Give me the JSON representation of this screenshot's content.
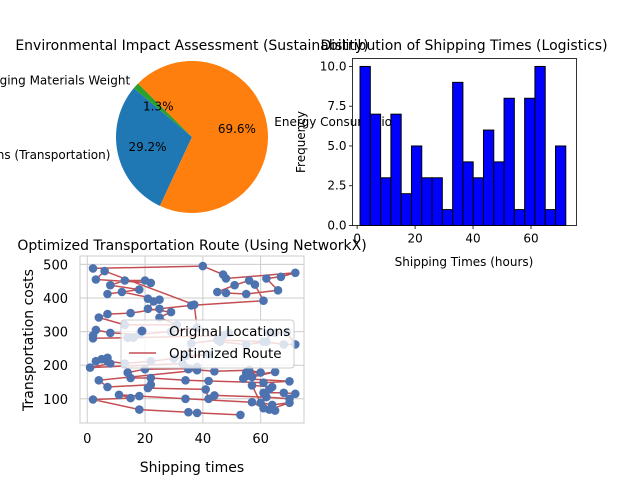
{
  "chart_data": [
    {
      "type": "pie",
      "title": "Environmental Impact Assessment (Sustainability)",
      "labels": [
        "Carbon Emissions (Transportation)",
        "Energy Consumption",
        "Packaging Materials Weight"
      ],
      "values": [
        29.2,
        69.6,
        1.3
      ],
      "value_labels": [
        "29.2%",
        "69.6%",
        "1.3%"
      ],
      "colors": [
        "#1f77b4",
        "#ff7f0e",
        "#2ca02c"
      ],
      "start_angle_deg": 140
    },
    {
      "type": "bar",
      "title": "Distribution of Shipping Times (Logistics)",
      "xlabel": "Shipping Times (hours)",
      "ylabel": "Frequency",
      "bin_start": 1,
      "bin_width": 3.55,
      "values": [
        10,
        7,
        3,
        7,
        2,
        5,
        3,
        3,
        1,
        9,
        4,
        3,
        6,
        4,
        8,
        1,
        8,
        10,
        1,
        5
      ],
      "xlim": [
        -1.6,
        75.7
      ],
      "ylim": [
        0,
        10.5
      ],
      "xticks": [
        0,
        20,
        40,
        60
      ],
      "yticks": [
        0.0,
        2.5,
        5.0,
        7.5,
        10.0
      ],
      "ytick_labels": [
        "0.0",
        "2.5",
        "5.0",
        "7.5",
        "10.0"
      ],
      "bar_color": "#0000ff",
      "edge_color": "#000000"
    },
    {
      "type": "scatter",
      "title": "Optimized Transportation Route (Using NetworkX)",
      "xlabel": "Shipping times",
      "ylabel": "Transportation costs",
      "xlim": [
        -2.5,
        75
      ],
      "ylim": [
        28,
        525
      ],
      "xticks": [
        0,
        20,
        40,
        60
      ],
      "yticks": [
        100,
        200,
        300,
        400,
        500
      ],
      "grid": true,
      "legend_position": "center-right",
      "legend": [
        "Original Locations",
        "Optimized Route"
      ],
      "point_color": "#4c72b0",
      "route_color": "#c44e52",
      "route": [
        [
          2,
          488
        ],
        [
          40,
          495
        ],
        [
          47,
          470
        ],
        [
          48,
          458
        ],
        [
          72,
          475
        ],
        [
          67,
          463
        ],
        [
          62,
          458
        ],
        [
          66,
          423
        ],
        [
          55,
          412
        ],
        [
          48,
          415
        ],
        [
          45,
          418
        ],
        [
          51,
          438
        ],
        [
          56,
          452
        ],
        [
          58,
          440
        ],
        [
          61,
          392
        ],
        [
          36,
          378
        ],
        [
          25,
          368
        ],
        [
          15,
          355
        ],
        [
          7,
          352
        ],
        [
          4,
          342
        ],
        [
          13,
          320
        ],
        [
          31,
          320
        ],
        [
          25,
          342
        ],
        [
          29,
          358
        ],
        [
          21,
          368
        ],
        [
          23,
          390
        ],
        [
          21,
          398
        ],
        [
          25,
          395
        ],
        [
          12,
          418
        ],
        [
          7,
          412
        ],
        [
          18,
          425
        ],
        [
          8,
          438
        ],
        [
          13,
          452
        ],
        [
          20,
          452
        ],
        [
          22,
          445
        ],
        [
          3,
          455
        ],
        [
          6,
          480
        ],
        [
          37,
          380
        ],
        [
          38,
          312
        ],
        [
          29,
          300
        ],
        [
          18,
          292
        ],
        [
          8,
          296
        ],
        [
          3,
          305
        ],
        [
          2,
          288
        ],
        [
          2,
          280
        ],
        [
          16,
          282
        ],
        [
          14,
          282
        ],
        [
          47,
          288
        ],
        [
          49,
          296
        ],
        [
          46,
          270
        ],
        [
          55,
          261
        ],
        [
          62,
          270
        ],
        [
          63,
          296
        ],
        [
          65,
          296
        ],
        [
          69,
          298
        ],
        [
          72,
          262
        ],
        [
          68,
          262
        ],
        [
          61,
          270
        ],
        [
          45,
          275
        ],
        [
          36,
          265
        ],
        [
          34,
          228
        ],
        [
          42,
          232
        ],
        [
          30,
          220
        ],
        [
          22,
          212
        ],
        [
          13,
          205
        ],
        [
          7,
          212
        ],
        [
          5,
          218
        ],
        [
          3,
          212
        ],
        [
          7,
          222
        ],
        [
          8,
          205
        ],
        [
          1,
          193
        ],
        [
          33,
          205
        ],
        [
          38,
          195
        ],
        [
          35,
          188
        ],
        [
          44,
          182
        ],
        [
          56,
          185
        ],
        [
          60,
          178
        ],
        [
          55,
          178
        ],
        [
          55,
          168
        ],
        [
          65,
          180
        ],
        [
          57,
          165
        ],
        [
          54,
          160
        ],
        [
          70,
          152
        ],
        [
          61,
          148
        ],
        [
          42,
          153
        ],
        [
          34,
          155
        ],
        [
          22,
          162
        ],
        [
          15,
          162
        ],
        [
          14,
          178
        ],
        [
          20,
          188
        ],
        [
          35,
          190
        ],
        [
          38,
          185
        ],
        [
          4,
          155
        ],
        [
          7,
          135
        ],
        [
          22,
          142
        ],
        [
          21,
          132
        ],
        [
          41,
          128
        ],
        [
          42,
          100
        ],
        [
          44,
          110
        ],
        [
          62,
          105
        ],
        [
          70,
          100
        ],
        [
          72,
          115
        ],
        [
          68,
          118
        ],
        [
          61,
          118
        ],
        [
          63,
          128
        ],
        [
          64,
          135
        ],
        [
          57,
          140
        ],
        [
          60,
          88
        ],
        [
          64,
          82
        ],
        [
          70,
          88
        ],
        [
          63,
          68
        ],
        [
          65,
          65
        ],
        [
          61,
          72
        ],
        [
          57,
          90
        ],
        [
          34,
          100
        ],
        [
          18,
          108
        ],
        [
          11,
          112
        ],
        [
          15,
          102
        ],
        [
          2,
          98
        ],
        [
          18,
          68
        ],
        [
          35,
          60
        ],
        [
          38,
          58
        ],
        [
          53,
          52
        ]
      ]
    }
  ]
}
